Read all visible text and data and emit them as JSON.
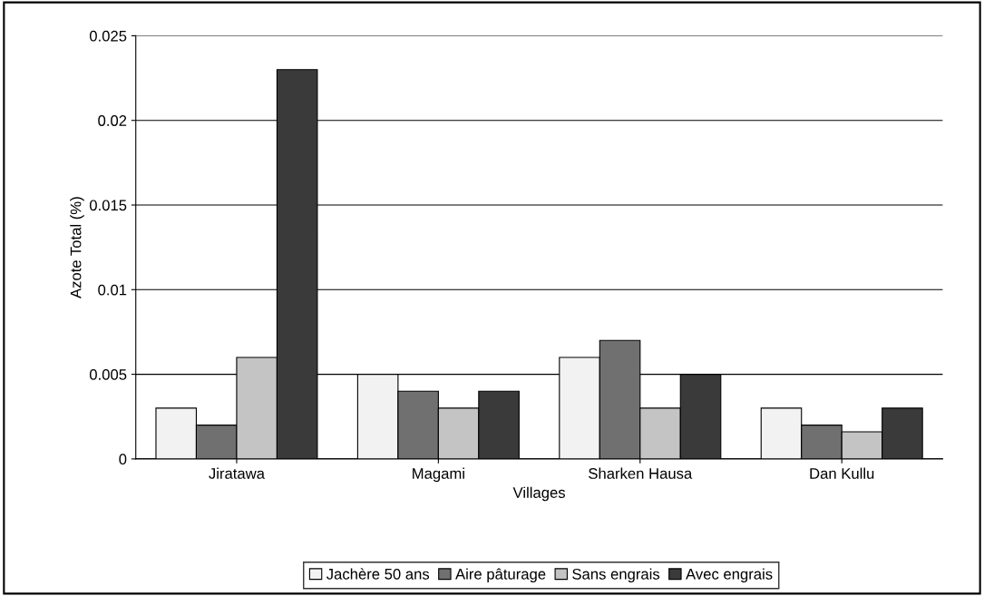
{
  "chart_data": {
    "type": "bar",
    "xlabel": "Villages",
    "ylabel": "Azote Total (%)",
    "categories": [
      "Jiratawa",
      "Magami",
      "Sharken Hausa",
      "Dan Kullu"
    ],
    "series": [
      {
        "name": "Jachère 50 ans",
        "color": "#f2f2f2",
        "values": [
          0.003,
          0.005,
          0.006,
          0.003
        ]
      },
      {
        "name": "Aire pâturage",
        "color": "#707070",
        "values": [
          0.002,
          0.004,
          0.007,
          0.002
        ]
      },
      {
        "name": "Sans engrais",
        "color": "#c4c4c4",
        "values": [
          0.006,
          0.003,
          0.003,
          0.0016
        ]
      },
      {
        "name": "Avec engrais",
        "color": "#3a3a3a",
        "values": [
          0.023,
          0.004,
          0.005,
          0.003
        ]
      }
    ],
    "ylim": [
      0,
      0.025
    ],
    "yticks": [
      0,
      0.005,
      0.01,
      0.015,
      0.02,
      0.025
    ],
    "grid": "y",
    "legend": "bottom"
  }
}
